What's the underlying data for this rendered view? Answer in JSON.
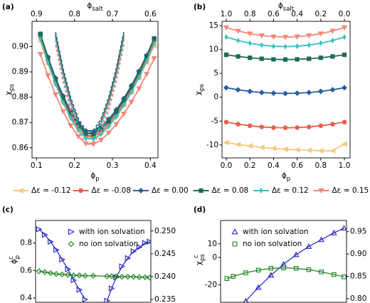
{
  "chart_data": [
    {
      "type": "line",
      "panel_label": "(a)",
      "xlabel": {
        "base": "ϕ",
        "sub": "p"
      },
      "x2label": {
        "base": "ϕ",
        "sub": "salt"
      },
      "ylabel": {
        "base": "χ",
        "sub": "ps"
      },
      "xlim": [
        0.088,
        0.42
      ],
      "xticks": [
        0.1,
        0.2,
        0.3,
        0.4
      ],
      "x2lim": [
        0.912,
        0.58
      ],
      "x2ticks": [
        0.9,
        0.8,
        0.7,
        0.6
      ],
      "ylim": [
        0.856,
        0.91
      ],
      "yticks": [
        0.86,
        0.87,
        0.88,
        0.89,
        {
          "value": 0.9,
          "label": "0.90"
        }
      ],
      "legend": "below",
      "x": [
        0.11,
        0.13,
        0.15,
        0.17,
        0.19,
        0.21,
        0.23,
        0.25,
        0.27,
        0.29,
        0.31,
        0.33,
        0.35,
        0.37,
        0.39,
        0.41
      ],
      "series": [
        {
          "name": "Δε = -0.12",
          "color": "#f6c97c",
          "marker": "triangle-left",
          "filled": true,
          "values": [
            0.902,
            0.8931,
            0.8851,
            0.8781,
            0.8722,
            0.8676,
            0.8646,
            0.8644,
            0.8662,
            0.8691,
            0.8728,
            0.8771,
            0.8821,
            0.8876,
            0.8937,
            0.9003
          ],
          "dashed": [
            null,
            null,
            0.9037,
            0.8892,
            0.8778,
            0.8695,
            0.8648,
            0.8648,
            0.8695,
            0.8778,
            0.8892,
            0.9037,
            null,
            null,
            null,
            null
          ]
        },
        {
          "name": "Δε = -0.08",
          "color": "#e8604a",
          "marker": "circle",
          "filled": true,
          "values": [
            0.904,
            0.8946,
            0.8862,
            0.8788,
            0.8727,
            0.8678,
            0.8647,
            0.8644,
            0.8664,
            0.8694,
            0.8732,
            0.8778,
            0.883,
            0.8889,
            0.8952,
            0.9022
          ],
          "dashed": [
            null,
            null,
            0.9037,
            0.8892,
            0.8778,
            0.8695,
            0.8648,
            0.8648,
            0.8695,
            0.8778,
            0.8892,
            0.9037,
            null,
            null,
            null,
            null
          ]
        },
        {
          "name": "Δε = 0.00",
          "color": "#2b5d9e",
          "marker": "diamond",
          "filled": true,
          "values": [
            0.905,
            0.8959,
            0.8876,
            0.8805,
            0.8745,
            0.8697,
            0.8667,
            0.8664,
            0.8683,
            0.8713,
            0.875,
            0.8795,
            0.8846,
            0.8903,
            0.8965,
            0.9032
          ],
          "dashed": [
            null,
            null,
            0.9057,
            0.8912,
            0.8798,
            0.8715,
            0.8668,
            0.8668,
            0.8715,
            0.8798,
            0.8912,
            0.9057,
            null,
            null,
            null,
            null
          ]
        },
        {
          "name": "Δε = 0.08",
          "color": "#1f6b5a",
          "marker": "square",
          "filled": true,
          "values": [
            0.905,
            0.8956,
            0.8872,
            0.8798,
            0.8737,
            0.8688,
            0.8657,
            0.8654,
            0.8674,
            0.8704,
            0.8742,
            0.8788,
            0.884,
            0.8899,
            0.8962,
            0.9032
          ],
          "dashed": [
            null,
            null,
            0.9047,
            0.8902,
            0.8788,
            0.8705,
            0.8658,
            0.8658,
            0.8705,
            0.8788,
            0.8902,
            0.9047,
            null,
            null,
            null,
            null
          ]
        },
        {
          "name": "Δε = 0.12",
          "color": "#3cc0c0",
          "marker": "thin-diamond",
          "filled": true,
          "values": [
            0.903,
            0.8936,
            0.8852,
            0.8778,
            0.8717,
            0.8668,
            0.8637,
            0.8634,
            0.8654,
            0.8684,
            0.8722,
            0.8768,
            0.882,
            0.8879,
            0.8942,
            0.9012
          ],
          "dashed": [
            null,
            null,
            0.9027,
            0.8882,
            0.8768,
            0.8685,
            0.8638,
            0.8638,
            0.8685,
            0.8768,
            0.8882,
            0.9027,
            null,
            null,
            null,
            null
          ]
        },
        {
          "name": "Δε = 0.15",
          "color": "#f08878",
          "marker": "triangle-down",
          "filled": true,
          "values": [
            0.897,
            0.8886,
            0.881,
            0.8744,
            0.8688,
            0.8645,
            0.8616,
            0.8614,
            0.8631,
            0.8659,
            0.8693,
            0.8734,
            0.8781,
            0.8834,
            0.8891,
            0.8953
          ],
          "dashed": [
            null,
            null,
            0.9007,
            0.8862,
            0.8748,
            0.8665,
            0.8618,
            0.8618,
            0.8665,
            0.8748,
            0.8862,
            0.9007,
            null,
            null,
            null,
            null
          ]
        }
      ]
    },
    {
      "type": "line",
      "panel_label": "(b)",
      "xlabel": {
        "base": "ϕ",
        "sub": "p"
      },
      "x2label": {
        "base": "ϕ",
        "sub": "salt"
      },
      "ylabel": {
        "base": "χ",
        "sub": "ps"
      },
      "xlim": [
        -0.036,
        1.048
      ],
      "xticks": [
        {
          "value": 0,
          "label": "0.0"
        },
        0.2,
        0.4,
        0.6,
        0.8,
        {
          "value": 1,
          "label": "1.0"
        }
      ],
      "x2lim": [
        1.036,
        -0.048
      ],
      "x2ticks": [
        {
          "value": 1,
          "label": "1.0"
        },
        0.8,
        0.6,
        0.4,
        0.2,
        {
          "value": 0,
          "label": "0.0"
        }
      ],
      "ylim": [
        -12.7,
        15.9
      ],
      "yticks": [
        -10,
        -5,
        0,
        5,
        10,
        15
      ],
      "x": [
        0,
        0.1,
        0.2,
        0.3,
        0.4,
        0.5,
        0.6,
        0.7,
        0.8,
        0.9,
        1
      ],
      "series": [
        {
          "color": "#f6c97c",
          "marker": "triangle-left",
          "filled": true,
          "values": [
            -9.5,
            -9.9,
            -10.2,
            -10.5,
            -10.7,
            -10.9,
            -11,
            -11.1,
            -11.2,
            -11.2,
            -9.8
          ]
        },
        {
          "color": "#e8604a",
          "marker": "circle",
          "filled": true,
          "values": [
            -5.2,
            -5.63,
            -5.97,
            -6.21,
            -6.35,
            -6.4,
            -6.35,
            -6.21,
            -5.97,
            -5.63,
            -5.2
          ]
        },
        {
          "color": "#2b5d9e",
          "marker": "diamond",
          "filled": true,
          "values": [
            2,
            1.57,
            1.23,
            0.99,
            0.85,
            0.8,
            0.85,
            0.99,
            1.23,
            1.57,
            2
          ]
        },
        {
          "color": "#1f6b5a",
          "marker": "square",
          "filled": true,
          "values": [
            8.9,
            8.54,
            8.26,
            8.06,
            7.94,
            7.9,
            7.94,
            8.06,
            8.26,
            8.54,
            8.9
          ]
        },
        {
          "color": "#3cc0c0",
          "marker": "thin-diamond",
          "filled": true,
          "values": [
            12.6,
            11.88,
            11.32,
            10.92,
            10.68,
            10.6,
            10.68,
            10.92,
            11.32,
            11.88,
            12.6
          ]
        },
        {
          "color": "#f08878",
          "marker": "triangle-down",
          "filled": true,
          "values": [
            14.6,
            13.88,
            13.32,
            12.92,
            12.68,
            12.6,
            12.68,
            12.92,
            13.32,
            13.88,
            14.6
          ]
        }
      ]
    },
    {
      "type": "line",
      "panel_label": "(c)",
      "ylabel": {
        "base": "ϕ",
        "sub": "p",
        "sup": "c"
      },
      "ylabel_color": "#2020c0",
      "ytick_color": "#2020c0",
      "y2tick_color": "#1a7f1a",
      "legend": "upper right",
      "xlim": [
        0,
        1
      ],
      "ylim": [
        0.369,
        0.964
      ],
      "yticks": [
        0.4,
        0.6,
        0.8
      ],
      "y2lim": [
        0.2344,
        0.2523
      ],
      "y2ticks": [
        0.235,
        {
          "value": 0.24,
          "label": "0.240"
        },
        0.245,
        {
          "value": 0.25,
          "label": "0.250"
        }
      ],
      "x": [
        0.03,
        0.08,
        0.13,
        0.18,
        0.23,
        0.28,
        0.33,
        0.38,
        0.43,
        0.5,
        0.62,
        0.66,
        0.7,
        0.75,
        0.8,
        0.85,
        0.9,
        0.95,
        0.99
      ],
      "series": [
        {
          "name": "with ion solvation",
          "color": "#2020c0",
          "marker": "triangle-right",
          "filled": false,
          "values": [
            0.9,
            0.86,
            0.81,
            0.75,
            0.68,
            0.61,
            0.53,
            0.46,
            0.39,
            null,
            0.38,
            0.47,
            0.55,
            0.63,
            0.69,
            0.74,
            0.77,
            0.8,
            0.81
          ]
        },
        {
          "name": "no ion solvation",
          "color": "#1a7f1a",
          "marker": "diamond",
          "filled": false,
          "axis": "y2",
          "values": [
            0.2412,
            0.241,
            0.2408,
            0.2406,
            0.2405,
            0.2404,
            0.2403,
            0.2403,
            0.2402,
            0.2402,
            0.2401,
            0.2401,
            0.2401,
            0.24,
            0.24,
            0.24,
            0.2399,
            0.2399,
            0.2398
          ]
        }
      ]
    },
    {
      "type": "line",
      "panel_label": "(d)",
      "ylabel": {
        "base": "χ",
        "sub": "ps",
        "sup": "c"
      },
      "ylabel_color": "#2020c0",
      "ytick_color": "#2020c0",
      "y2tick_color": "#1a7f1a",
      "legend": "upper left",
      "xlim": [
        0,
        1
      ],
      "ylim": [
        -32.9,
        27.1
      ],
      "yticks": [
        -20,
        0,
        10
      ],
      "y2lim": [
        0.792,
        0.975
      ],
      "y2ticks": [
        {
          "value": 0.8,
          "label": "0.80"
        },
        0.85,
        {
          "value": 0.9,
          "label": "0.90"
        },
        0.95
      ],
      "x": [
        0.05,
        0.1,
        0.2,
        0.3,
        0.4,
        0.5,
        0.6,
        0.7,
        0.8,
        0.9,
        0.98
      ],
      "series": [
        {
          "name": "with ion solvation",
          "color": "#2020c0",
          "marker": "triangle-up",
          "filled": false,
          "values": [
            null,
            null,
            -32,
            -22,
            -13,
            -5,
            2,
            8,
            13,
            18,
            21.5
          ]
        },
        {
          "name": "no ion solvation",
          "color": "#1a7f1a",
          "marker": "square",
          "filled": false,
          "axis": "y2",
          "values": [
            0.845,
            0.85,
            0.858,
            0.864,
            0.868,
            0.869,
            0.868,
            0.865,
            0.86,
            0.854,
            0.849
          ]
        }
      ]
    }
  ]
}
